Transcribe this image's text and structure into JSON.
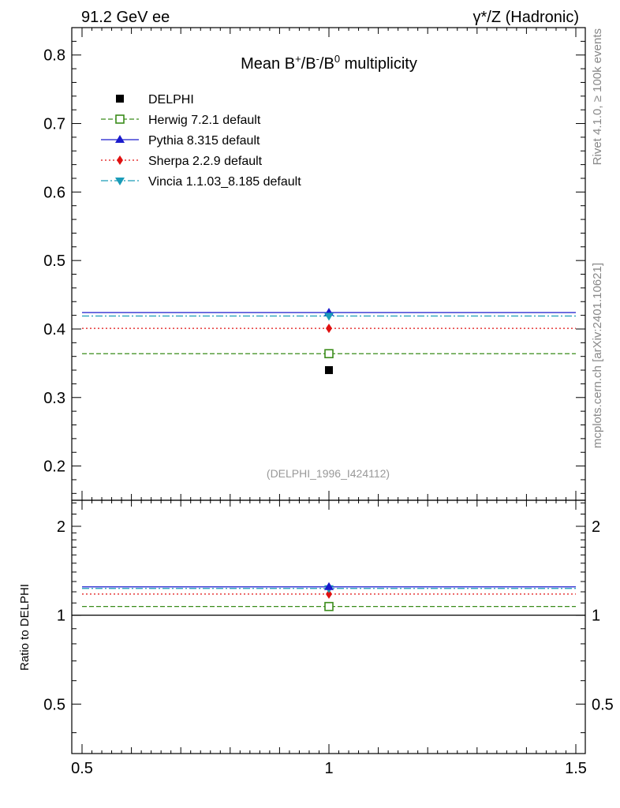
{
  "header": {
    "left": "91.2 GeV ee",
    "right": "γ*/Z (Hadronic)"
  },
  "side_labels": {
    "rivet": "Rivet 4.1.0, ≥ 100k events",
    "mcplots": "mcplots.cern.ch [arXiv:2401.10621]"
  },
  "colors": {
    "data": "#000000",
    "herwig": "#3a8c1a",
    "pythia": "#1a1acc",
    "sherpa": "#e01010",
    "vincia": "#1a9cb8"
  },
  "chart_data": [
    {
      "type": "scatter",
      "panel": "main",
      "title_parts": [
        "Mean B",
        "+",
        "/B",
        "-",
        "/B",
        "0",
        " multiplicity"
      ],
      "analysis_id": "(DELPHI_1996_I424112)",
      "xlim": [
        0.5,
        1.5
      ],
      "ylim": [
        0.15,
        0.84
      ],
      "yticks": [
        0.2,
        0.3,
        0.4,
        0.5,
        0.6,
        0.7,
        0.8
      ],
      "ytick_labels": [
        "0.2",
        "0.3",
        "0.4",
        "0.5",
        "0.6",
        "0.7",
        "0.8"
      ],
      "legend_position": "top-left",
      "series": [
        {
          "key": "data",
          "name": "DELPHI",
          "x": 1.0,
          "y": 0.34,
          "marker": "square",
          "line": "none"
        },
        {
          "key": "herwig",
          "name": "Herwig 7.2.1 default",
          "x": 1.0,
          "y": 0.364,
          "marker": "open-square",
          "line": "dashed"
        },
        {
          "key": "pythia",
          "name": "Pythia 8.315 default",
          "x": 1.0,
          "y": 0.424,
          "marker": "triangle-up",
          "line": "solid"
        },
        {
          "key": "sherpa",
          "name": "Sherpa 2.2.9 default",
          "x": 1.0,
          "y": 0.401,
          "marker": "diamond",
          "line": "dotted"
        },
        {
          "key": "vincia",
          "name": "Vincia 1.1.03_8.185 default",
          "x": 1.0,
          "y": 0.419,
          "marker": "triangle-down",
          "line": "dashdot"
        }
      ]
    },
    {
      "type": "scatter",
      "panel": "ratio",
      "ylabel": "Ratio to DELPHI",
      "xlim": [
        0.5,
        1.5
      ],
      "ylim": [
        0.34,
        2.45
      ],
      "yscale": "log",
      "yticks": [
        0.5,
        1,
        2
      ],
      "ytick_labels": [
        "0.5",
        "1",
        "2"
      ],
      "xticks": [
        0.5,
        1,
        1.5
      ],
      "xtick_labels": [
        "0.5",
        "1",
        "1.5"
      ],
      "reference": 1.0,
      "series": [
        {
          "key": "herwig",
          "y": 1.07
        },
        {
          "key": "pythia",
          "y": 1.247
        },
        {
          "key": "sherpa",
          "y": 1.179
        },
        {
          "key": "vincia",
          "y": 1.232
        }
      ]
    }
  ]
}
